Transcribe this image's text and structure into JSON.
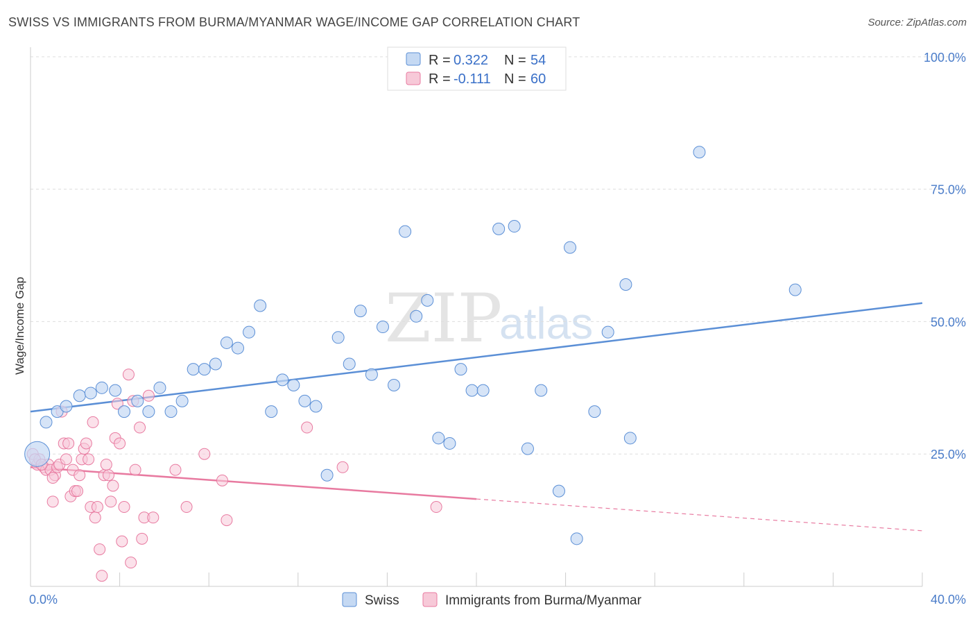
{
  "title": "SWISS VS IMMIGRANTS FROM BURMA/MYANMAR WAGE/INCOME GAP CORRELATION CHART",
  "source": "Source: ZipAtlas.com",
  "watermark": {
    "zip": "ZIP",
    "atlas": "atlas"
  },
  "colors": {
    "swiss": "#5b8fd6",
    "burma": "#e87aa0",
    "swiss_fill": "#c5d9f3",
    "burma_fill": "#f7c9d8"
  },
  "legend": {
    "swiss": {
      "r_label": "R =",
      "r_value": "0.322",
      "n_label": "N =",
      "n_value": "54"
    },
    "burma": {
      "r_label": "R =",
      "r_value": "-0.111",
      "n_label": "N =",
      "n_value": "60"
    }
  },
  "bottom_legend": {
    "swiss": "Swiss",
    "burma": "Immigrants from Burma/Myanmar"
  },
  "chart_data": {
    "type": "scatter",
    "title": "SWISS VS IMMIGRANTS FROM BURMA/MYANMAR WAGE/INCOME GAP CORRELATION CHART",
    "xlabel": "",
    "ylabel": "Wage/Income Gap",
    "xlim": [
      0,
      40
    ],
    "ylim": [
      0,
      100
    ],
    "x_tick_labels": [
      "0.0%",
      "40.0%"
    ],
    "y_tick_labels": [
      "25.0%",
      "50.0%",
      "75.0%",
      "100.0%"
    ],
    "y_ticks": [
      25,
      50,
      75,
      100
    ],
    "series": [
      {
        "name": "Swiss",
        "r": 0.322,
        "n": 54,
        "trend": {
          "x0": 0,
          "y0": 33,
          "x1": 40,
          "y1": 53.5
        },
        "points": [
          [
            0.3,
            25
          ],
          [
            0.7,
            31
          ],
          [
            1.2,
            33
          ],
          [
            1.6,
            34
          ],
          [
            2.2,
            36
          ],
          [
            2.7,
            36.5
          ],
          [
            3.2,
            37.5
          ],
          [
            3.8,
            37
          ],
          [
            4.2,
            33
          ],
          [
            4.8,
            35
          ],
          [
            5.3,
            33
          ],
          [
            5.8,
            37.5
          ],
          [
            6.3,
            33
          ],
          [
            6.8,
            35
          ],
          [
            7.3,
            41
          ],
          [
            7.8,
            41
          ],
          [
            8.3,
            42
          ],
          [
            8.8,
            46
          ],
          [
            9.3,
            45
          ],
          [
            9.8,
            48
          ],
          [
            10.3,
            53
          ],
          [
            10.8,
            33
          ],
          [
            11.3,
            39
          ],
          [
            11.8,
            38
          ],
          [
            12.3,
            35
          ],
          [
            12.8,
            34
          ],
          [
            13.3,
            21
          ],
          [
            13.8,
            47
          ],
          [
            14.3,
            42
          ],
          [
            14.8,
            52
          ],
          [
            15.3,
            40
          ],
          [
            15.8,
            49
          ],
          [
            16.3,
            38
          ],
          [
            16.8,
            67
          ],
          [
            17.3,
            51
          ],
          [
            17.8,
            54
          ],
          [
            18.3,
            28
          ],
          [
            18.8,
            27
          ],
          [
            19.3,
            41
          ],
          [
            19.8,
            37
          ],
          [
            20.3,
            37
          ],
          [
            21.0,
            67.5
          ],
          [
            21.7,
            68
          ],
          [
            22.3,
            26
          ],
          [
            22.9,
            37
          ],
          [
            23.7,
            18
          ],
          [
            24.2,
            64
          ],
          [
            24.5,
            9
          ],
          [
            25.3,
            33
          ],
          [
            25.9,
            48
          ],
          [
            26.7,
            57
          ],
          [
            26.9,
            28
          ],
          [
            30.0,
            82
          ],
          [
            34.3,
            56
          ]
        ]
      },
      {
        "name": "Immigrants from Burma/Myanmar",
        "r": -0.111,
        "n": 60,
        "trend": {
          "x0": 0,
          "y0": 22.5,
          "x1": 20,
          "y1": 16.5,
          "dashed_to_x": 40,
          "dashed_to_y": 10.5
        },
        "points": [
          [
            0.1,
            25
          ],
          [
            0.3,
            23
          ],
          [
            0.4,
            24
          ],
          [
            0.6,
            22.5
          ],
          [
            0.7,
            22
          ],
          [
            0.8,
            23
          ],
          [
            0.9,
            22
          ],
          [
            1.0,
            16
          ],
          [
            1.1,
            21
          ],
          [
            1.2,
            22.5
          ],
          [
            1.3,
            23
          ],
          [
            1.4,
            33
          ],
          [
            1.5,
            27
          ],
          [
            1.6,
            24
          ],
          [
            1.7,
            27
          ],
          [
            1.8,
            17
          ],
          [
            1.9,
            22
          ],
          [
            2.0,
            18
          ],
          [
            2.1,
            18
          ],
          [
            2.2,
            21
          ],
          [
            2.3,
            24
          ],
          [
            2.4,
            26
          ],
          [
            2.5,
            27
          ],
          [
            2.6,
            24
          ],
          [
            2.7,
            15
          ],
          [
            2.8,
            31
          ],
          [
            2.9,
            13
          ],
          [
            3.0,
            15
          ],
          [
            3.1,
            7
          ],
          [
            3.2,
            2
          ],
          [
            3.3,
            21
          ],
          [
            3.4,
            23
          ],
          [
            3.5,
            21
          ],
          [
            3.6,
            16
          ],
          [
            3.7,
            19
          ],
          [
            3.8,
            28
          ],
          [
            3.9,
            34.5
          ],
          [
            4.0,
            27
          ],
          [
            4.1,
            8.5
          ],
          [
            4.2,
            15
          ],
          [
            4.4,
            40
          ],
          [
            4.5,
            4.5
          ],
          [
            4.6,
            35
          ],
          [
            4.7,
            22
          ],
          [
            4.9,
            30
          ],
          [
            5.0,
            9
          ],
          [
            5.1,
            13
          ],
          [
            5.3,
            36
          ],
          [
            5.5,
            13
          ],
          [
            6.5,
            22
          ],
          [
            7.0,
            15
          ],
          [
            7.8,
            25
          ],
          [
            8.6,
            20
          ],
          [
            8.8,
            12.5
          ],
          [
            12.4,
            30
          ],
          [
            14.0,
            22.5
          ],
          [
            18.2,
            15
          ],
          [
            0.2,
            24
          ],
          [
            0.5,
            23
          ],
          [
            1.0,
            20.5
          ]
        ]
      }
    ]
  }
}
